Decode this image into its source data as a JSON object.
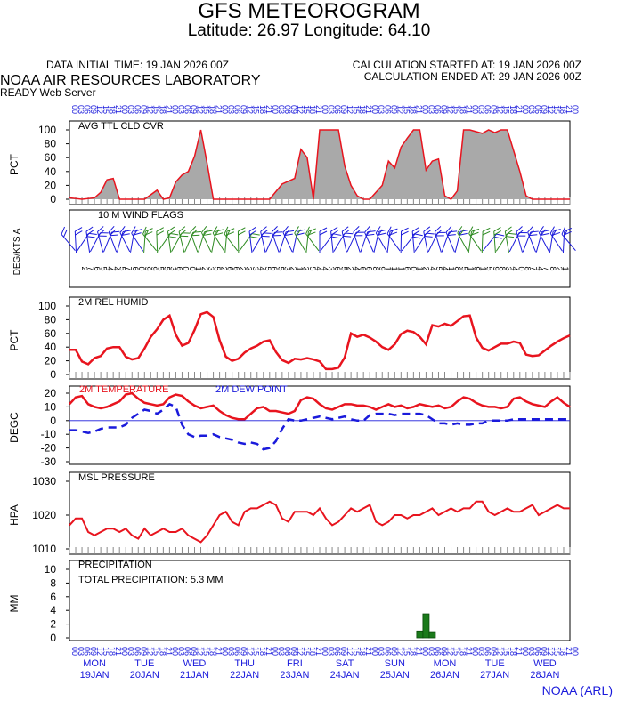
{
  "header": {
    "title": "GFS METEOROGRAM",
    "subtitle": "Latitude: 26.97 Longitude:  64.10",
    "data_initial_time": "DATA INITIAL TIME: 19 JAN 2026 00Z",
    "calc_started": "CALCULATION STARTED AT: 19 JAN 2026 00Z",
    "calc_ended": "CALCULATION ENDED AT: 29 JAN 2026 00Z",
    "organization": "NOAA AIR RESOURCES LABORATORY",
    "server": "READY Web Server",
    "footer": "NOAA (ARL)"
  },
  "colors": {
    "red": "#e8141e",
    "blue": "#1a1adb",
    "green": "#2e8b22",
    "gray": "#a9a9a9",
    "precip": "#1a7a1a"
  },
  "days": [
    {
      "dow": "MON",
      "date": "19JAN"
    },
    {
      "dow": "TUE",
      "date": "20JAN"
    },
    {
      "dow": "WED",
      "date": "21JAN"
    },
    {
      "dow": "THU",
      "date": "22JAN"
    },
    {
      "dow": "FRI",
      "date": "23JAN"
    },
    {
      "dow": "SAT",
      "date": "24JAN"
    },
    {
      "dow": "SUN",
      "date": "25JAN"
    },
    {
      "dow": "MON",
      "date": "26JAN"
    },
    {
      "dow": "TUE",
      "date": "27JAN"
    },
    {
      "dow": "WED",
      "date": "28JAN"
    }
  ],
  "hour_labels": [
    "00",
    "03",
    "06",
    "09",
    "12",
    "15",
    "18",
    "21"
  ],
  "time": {
    "start_hours": 0,
    "end_hours": 240,
    "step_hours": 3
  },
  "chart_data": [
    {
      "type": "area",
      "title": "AVG TTL CLD CVR",
      "ylabel": "PCT",
      "ylim": [
        0,
        100
      ],
      "yticks": [
        0,
        20,
        40,
        60,
        80,
        100
      ],
      "x_hours": [
        0,
        6,
        12,
        15,
        18,
        21,
        24,
        36,
        42,
        45,
        48,
        51,
        54,
        57,
        60,
        63,
        66,
        69,
        72,
        84,
        96,
        102,
        108,
        111,
        114,
        117,
        120,
        126,
        129,
        132,
        135,
        138,
        141,
        144,
        150,
        153,
        156,
        159,
        162,
        165,
        168,
        171,
        174,
        177,
        180,
        183,
        186,
        189,
        192,
        198,
        201,
        204,
        207,
        210,
        213,
        216,
        219,
        222,
        225,
        228,
        234,
        240
      ],
      "values": [
        2,
        0,
        2,
        10,
        28,
        30,
        0,
        0,
        13,
        0,
        2,
        25,
        35,
        40,
        62,
        100,
        52,
        0,
        0,
        0,
        0,
        22,
        30,
        72,
        60,
        0,
        100,
        100,
        100,
        48,
        20,
        5,
        0,
        0,
        20,
        55,
        45,
        75,
        88,
        100,
        100,
        42,
        55,
        58,
        5,
        0,
        12,
        100,
        100,
        95,
        100,
        96,
        100,
        100,
        70,
        40,
        5,
        0,
        0,
        0,
        0,
        0
      ]
    },
    {
      "type": "table",
      "title": "10 M  WIND FLAGS",
      "ylabel": "DEG/KTS  A",
      "digits": [
        "2",
        "7",
        "6",
        "5",
        "4",
        "4",
        "5",
        "7",
        "6",
        "0",
        "9",
        "9",
        "5",
        "5",
        "3",
        "6",
        "0",
        "0",
        "1",
        "2",
        "3",
        "5",
        "2",
        "6",
        "6",
        "2",
        "3",
        "3",
        "4",
        "5",
        "6",
        "5",
        "3",
        "2",
        "1",
        "3",
        "5",
        "4",
        "4",
        "3",
        "6",
        "5",
        "2",
        "4",
        "6",
        "6",
        "8",
        "9",
        "1",
        "1",
        "1",
        "6",
        "0",
        "1",
        "2",
        "4",
        "5",
        "4",
        "1",
        "8",
        "5",
        "1",
        "9",
        "1",
        "5",
        "9",
        "8",
        "3",
        "4",
        "0",
        "8",
        "7",
        "4",
        "7",
        "8",
        "2",
        "1"
      ]
    },
    {
      "type": "line",
      "title": "2M REL HUMID",
      "ylabel": "PCT",
      "ylim": [
        0,
        100
      ],
      "yticks": [
        0,
        20,
        40,
        60,
        80,
        100
      ],
      "x_hours": [
        0,
        3,
        6,
        9,
        12,
        15,
        18,
        21,
        24,
        27,
        30,
        33,
        36,
        39,
        42,
        45,
        48,
        51,
        54,
        57,
        60,
        63,
        66,
        69,
        72,
        75,
        78,
        81,
        84,
        87,
        90,
        93,
        96,
        99,
        102,
        105,
        108,
        111,
        114,
        117,
        120,
        123,
        126,
        129,
        132,
        135,
        138,
        141,
        144,
        147,
        150,
        153,
        156,
        159,
        162,
        165,
        168,
        171,
        174,
        177,
        180,
        183,
        186,
        189,
        192,
        195,
        198,
        201,
        204,
        207,
        210,
        213,
        216,
        219,
        222,
        225,
        228,
        231,
        234,
        237,
        240
      ],
      "series": [
        {
          "values": [
            36,
            36,
            19,
            15,
            24,
            27,
            38,
            40,
            40,
            26,
            22,
            24,
            38,
            55,
            66,
            80,
            86,
            58,
            42,
            46,
            65,
            88,
            91,
            84,
            50,
            26,
            20,
            23,
            32,
            38,
            42,
            48,
            50,
            33,
            21,
            17,
            23,
            22,
            24,
            22,
            19,
            8,
            8,
            10,
            25,
            60,
            55,
            58,
            54,
            48,
            40,
            36,
            44,
            59,
            64,
            62,
            55,
            44,
            72,
            70,
            74,
            71,
            78,
            85,
            86,
            54,
            39,
            35,
            40,
            45,
            45,
            48,
            46,
            29,
            27,
            28,
            35,
            42,
            48,
            53,
            57
          ]
        }
      ]
    },
    {
      "type": "line",
      "title": "2M TEMPERATURE",
      "ylabel": "DEGC",
      "ylim": [
        -30,
        20
      ],
      "yticks": [
        20,
        10,
        0,
        -10,
        -20,
        -30
      ],
      "x_hours": [
        0,
        3,
        6,
        9,
        12,
        15,
        18,
        21,
        24,
        27,
        30,
        33,
        36,
        39,
        42,
        45,
        48,
        51,
        54,
        57,
        60,
        63,
        66,
        69,
        72,
        75,
        78,
        81,
        84,
        87,
        90,
        93,
        96,
        99,
        102,
        105,
        108,
        111,
        114,
        117,
        120,
        123,
        126,
        129,
        132,
        135,
        138,
        141,
        144,
        147,
        150,
        153,
        156,
        159,
        162,
        165,
        168,
        171,
        174,
        177,
        180,
        183,
        186,
        189,
        192,
        195,
        198,
        201,
        204,
        207,
        210,
        213,
        216,
        219,
        222,
        225,
        228,
        231,
        234,
        237,
        240
      ],
      "series": [
        {
          "name": "2M TEMPERATURE",
          "values": [
            12,
            17,
            18,
            12,
            10,
            9,
            10,
            12,
            14,
            19,
            20,
            16,
            13,
            12,
            11,
            12,
            17,
            19,
            18,
            14,
            11,
            9,
            10,
            11,
            7,
            4,
            2,
            1,
            1,
            5,
            9,
            10,
            7,
            7,
            6,
            5,
            7,
            15,
            17,
            16,
            12,
            9,
            8,
            10,
            12,
            12,
            11,
            11,
            10,
            8,
            10,
            12,
            10,
            11,
            9,
            10,
            12,
            11,
            10,
            11,
            9,
            10,
            14,
            17,
            16,
            13,
            11,
            10,
            10,
            9,
            10,
            16,
            17,
            14,
            12,
            11,
            10,
            14,
            17,
            13,
            10
          ]
        },
        {
          "name": "2M  DEW POINT",
          "values": [
            -7,
            -7,
            -8,
            -9,
            -8,
            -6,
            -5,
            -5,
            -5,
            -3,
            2,
            5,
            8,
            7,
            5,
            8,
            12,
            10,
            -3,
            -10,
            -12,
            -11,
            -11,
            -10,
            -12,
            -13,
            -14,
            -16,
            -17,
            -16,
            -17,
            -21,
            -20,
            -15,
            -6,
            1,
            0,
            0,
            1,
            2,
            3,
            2,
            1,
            2,
            3,
            1,
            0,
            0,
            4,
            5,
            5,
            5,
            4,
            5,
            5,
            5,
            5,
            4,
            1,
            -2,
            -2,
            -3,
            -2,
            -3,
            -3,
            -2,
            -2,
            0,
            0,
            0,
            0,
            1,
            1,
            1,
            1,
            1,
            1,
            1,
            1,
            1,
            1
          ]
        }
      ]
    },
    {
      "type": "line",
      "title": "MSL PRESSURE",
      "ylabel": "HPA",
      "ylim": [
        1010,
        1030
      ],
      "yticks": [
        1010,
        1020,
        1030
      ],
      "x_hours": [
        0,
        3,
        6,
        9,
        12,
        15,
        18,
        21,
        24,
        27,
        30,
        33,
        36,
        39,
        42,
        45,
        48,
        51,
        54,
        57,
        60,
        63,
        66,
        69,
        72,
        75,
        78,
        81,
        84,
        87,
        90,
        93,
        96,
        99,
        102,
        105,
        108,
        111,
        114,
        117,
        120,
        123,
        126,
        129,
        132,
        135,
        138,
        141,
        144,
        147,
        150,
        153,
        156,
        159,
        162,
        165,
        168,
        171,
        174,
        177,
        180,
        183,
        186,
        189,
        192,
        195,
        198,
        201,
        204,
        207,
        210,
        213,
        216,
        219,
        222,
        225,
        228,
        231,
        234,
        237,
        240
      ],
      "series": [
        {
          "values": [
            1017,
            1019,
            1019,
            1015,
            1014,
            1015,
            1016,
            1016,
            1015,
            1016,
            1014,
            1013,
            1016,
            1014,
            1015,
            1016,
            1015,
            1015,
            1016,
            1014,
            1013,
            1012,
            1014,
            1017,
            1020,
            1021,
            1018,
            1017,
            1021,
            1022,
            1022,
            1023,
            1024,
            1023,
            1019,
            1018,
            1021,
            1021,
            1021,
            1020,
            1022,
            1019,
            1017,
            1018,
            1020,
            1022,
            1021,
            1022,
            1023,
            1018,
            1017,
            1018,
            1020,
            1020,
            1019,
            1020,
            1020,
            1021,
            1022,
            1020,
            1021,
            1022,
            1021,
            1022,
            1022,
            1024,
            1024,
            1021,
            1020,
            1021,
            1022,
            1021,
            1021,
            1022,
            1023,
            1020,
            1021,
            1022,
            1023,
            1022,
            1022
          ]
        }
      ]
    },
    {
      "type": "bar",
      "title": "PRECIPITATION",
      "annotation": "TOTAL PRECIPITATION:   5.3 MM",
      "ylabel": "MM",
      "ylim": [
        0,
        10
      ],
      "yticks": [
        0,
        2,
        4,
        6,
        8,
        10
      ],
      "x_hours": [
        168,
        171,
        174
      ],
      "values": [
        1.0,
        3.5,
        0.9
      ]
    }
  ]
}
